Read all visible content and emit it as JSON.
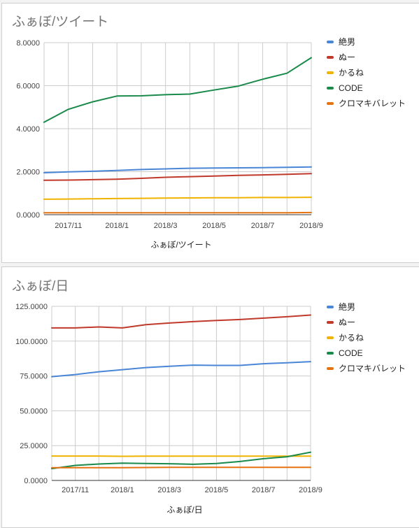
{
  "colors": {
    "絶男": "#4a86d6",
    "ぬー": "#c0392b",
    "かるね": "#f0b400",
    "CODE": "#1a8a4a",
    "クロマキバレット": "#e67312"
  },
  "chart_data": [
    {
      "type": "line",
      "title": "ふぁぼ/ツイート",
      "xlabel": "ふぁぼ/ツイート",
      "ylabel": "",
      "x_ticks": [
        "2017/11",
        "2018/1",
        "2018/3",
        "2018/5",
        "2018/7",
        "2018/9"
      ],
      "y_ticks": [
        "0.0000",
        "2.0000",
        "4.0000",
        "6.0000",
        "8.0000"
      ],
      "ylim": [
        0,
        8
      ],
      "x": [
        "2017/10",
        "2017/11",
        "2017/12",
        "2018/1",
        "2018/2",
        "2018/3",
        "2018/4",
        "2018/5",
        "2018/6",
        "2018/7",
        "2018/8",
        "2018/9"
      ],
      "legend_position": "right",
      "grid": true,
      "series": [
        {
          "name": "絶男",
          "values": [
            1.95,
            1.99,
            2.02,
            2.06,
            2.1,
            2.13,
            2.16,
            2.17,
            2.18,
            2.19,
            2.2,
            2.22
          ]
        },
        {
          "name": "ぬー",
          "values": [
            1.6,
            1.61,
            1.63,
            1.65,
            1.69,
            1.74,
            1.77,
            1.8,
            1.83,
            1.85,
            1.88,
            1.91
          ]
        },
        {
          "name": "かるね",
          "values": [
            0.72,
            0.73,
            0.74,
            0.75,
            0.76,
            0.77,
            0.78,
            0.79,
            0.79,
            0.8,
            0.8,
            0.81
          ]
        },
        {
          "name": "CODE",
          "values": [
            4.3,
            4.9,
            5.25,
            5.52,
            5.53,
            5.58,
            5.61,
            5.8,
            5.98,
            6.3,
            6.58,
            7.3
          ]
        },
        {
          "name": "クロマキバレット",
          "values": [
            0.09,
            0.09,
            0.09,
            0.09,
            0.09,
            0.09,
            0.09,
            0.09,
            0.09,
            0.09,
            0.09,
            0.1
          ]
        }
      ]
    },
    {
      "type": "line",
      "title": "ふぁぼ/日",
      "xlabel": "ふぁぼ/日",
      "ylabel": "",
      "x_ticks": [
        "2017/11",
        "2018/1",
        "2018/3",
        "2018/5",
        "2018/7",
        "2018/9"
      ],
      "y_ticks": [
        "0.0000",
        "25.0000",
        "50.0000",
        "75.0000",
        "100.0000",
        "125.0000"
      ],
      "ylim": [
        0,
        125
      ],
      "x": [
        "2017/10",
        "2017/11",
        "2017/12",
        "2018/1",
        "2018/2",
        "2018/3",
        "2018/4",
        "2018/5",
        "2018/6",
        "2018/7",
        "2018/8",
        "2018/9"
      ],
      "legend_position": "right",
      "grid": true,
      "series": [
        {
          "name": "絶男",
          "values": [
            74.5,
            76.0,
            78.0,
            79.5,
            81.0,
            82.0,
            82.8,
            82.6,
            82.6,
            83.8,
            84.5,
            85.3
          ]
        },
        {
          "name": "ぬー",
          "values": [
            109.5,
            109.5,
            110.2,
            109.5,
            111.8,
            113.0,
            114.0,
            114.8,
            115.5,
            116.5,
            117.5,
            118.7
          ]
        },
        {
          "name": "かるね",
          "values": [
            17.5,
            17.5,
            17.5,
            17.3,
            17.4,
            17.4,
            17.4,
            17.4,
            17.4,
            17.4,
            17.4,
            17.4
          ]
        },
        {
          "name": "CODE",
          "values": [
            8.5,
            10.8,
            11.8,
            12.4,
            12.2,
            12.0,
            11.6,
            12.2,
            13.6,
            15.6,
            17.0,
            20.3
          ]
        },
        {
          "name": "クロマキバレット",
          "values": [
            9.2,
            9.2,
            9.2,
            9.2,
            9.3,
            9.4,
            9.4,
            9.4,
            9.4,
            9.4,
            9.4,
            9.4
          ]
        }
      ]
    }
  ]
}
